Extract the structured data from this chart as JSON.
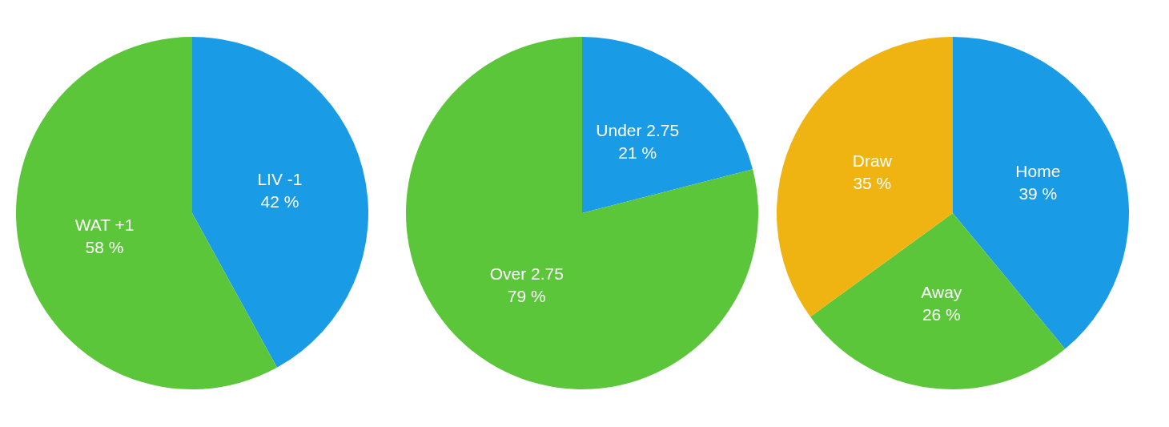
{
  "chart_data": [
    {
      "type": "pie",
      "categories": [
        "LIV -1",
        "WAT +1"
      ],
      "values": [
        42,
        58
      ],
      "colors": [
        "#1a9be6",
        "#5cc63a"
      ],
      "value_labels": [
        "42 %",
        "58 %"
      ]
    },
    {
      "type": "pie",
      "categories": [
        "Under 2.75",
        "Over 2.75"
      ],
      "values": [
        21,
        79
      ],
      "colors": [
        "#1a9be6",
        "#5cc63a"
      ],
      "value_labels": [
        "21 %",
        "79 %"
      ]
    },
    {
      "type": "pie",
      "categories": [
        "Home",
        "Away",
        "Draw"
      ],
      "values": [
        39,
        26,
        35
      ],
      "colors": [
        "#1a9be6",
        "#5cc63a",
        "#f0b412"
      ],
      "value_labels": [
        "39 %",
        "26 %",
        "35 %"
      ]
    }
  ]
}
